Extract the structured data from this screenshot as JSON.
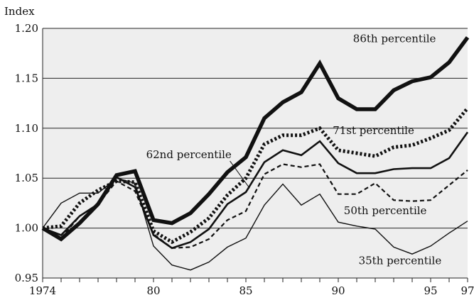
{
  "chart_data": {
    "type": "line",
    "title": "",
    "ylabel": "Index",
    "xlabel": "",
    "xlim": [
      1974,
      1997
    ],
    "ylim": [
      0.95,
      1.2
    ],
    "grid": "horizontal",
    "plot_background": "#eeeeee",
    "xticks": [
      1974,
      1980,
      1985,
      1990,
      1995,
      1997
    ],
    "xtick_labels": [
      "1974",
      "80",
      "85",
      "90",
      "95",
      "97"
    ],
    "yticks": [
      0.95,
      1.0,
      1.05,
      1.1,
      1.15,
      1.2
    ],
    "ytick_labels": [
      "0.95",
      "1.00",
      "1.05",
      "1.10",
      "1.15",
      "1.20"
    ],
    "x": [
      1974,
      1975,
      1976,
      1977,
      1978,
      1979,
      1980,
      1981,
      1982,
      1983,
      1984,
      1985,
      1986,
      1987,
      1988,
      1989,
      1990,
      1991,
      1992,
      1993,
      1994,
      1995,
      1996,
      1997
    ],
    "series": [
      {
        "name": "86th percentile",
        "style": "thick-solid",
        "values": [
          1.0,
          0.989,
          1.005,
          1.024,
          1.053,
          1.057,
          1.008,
          1.005,
          1.015,
          1.034,
          1.056,
          1.071,
          1.11,
          1.126,
          1.136,
          1.165,
          1.13,
          1.119,
          1.119,
          1.138,
          1.147,
          1.151,
          1.166,
          1.191
        ],
        "label_pos": [
          1990.8,
          1.186
        ]
      },
      {
        "name": "71st percentile",
        "style": "thick-dotted",
        "values": [
          1.0,
          1.002,
          1.025,
          1.038,
          1.047,
          1.046,
          0.997,
          0.986,
          0.996,
          1.01,
          1.033,
          1.05,
          1.084,
          1.093,
          1.093,
          1.1,
          1.078,
          1.075,
          1.072,
          1.081,
          1.083,
          1.09,
          1.098,
          1.12
        ],
        "label_pos": [
          1989.7,
          1.094
        ]
      },
      {
        "name": "62nd percentile",
        "style": "medium-solid",
        "values": [
          1.0,
          0.993,
          1.012,
          1.024,
          1.051,
          1.041,
          0.993,
          0.98,
          0.986,
          0.999,
          1.024,
          1.036,
          1.066,
          1.078,
          1.073,
          1.087,
          1.065,
          1.055,
          1.055,
          1.059,
          1.06,
          1.06,
          1.07,
          1.096
        ],
        "label_pos": [
          1979.6,
          1.07
        ]
      },
      {
        "name": "50th percentile",
        "style": "medium-dashed",
        "values": [
          1.0,
          0.99,
          1.012,
          1.024,
          1.047,
          1.037,
          0.994,
          0.98,
          0.981,
          0.989,
          1.008,
          1.017,
          1.054,
          1.064,
          1.061,
          1.064,
          1.034,
          1.034,
          1.045,
          1.028,
          1.027,
          1.028,
          1.043,
          1.058
        ],
        "label_pos": [
          1990.3,
          1.014
        ]
      },
      {
        "name": "35th percentile",
        "style": "thin-solid",
        "values": [
          1.0,
          1.025,
          1.035,
          1.035,
          1.05,
          1.045,
          0.982,
          0.963,
          0.958,
          0.966,
          0.981,
          0.99,
          1.023,
          1.044,
          1.023,
          1.034,
          1.006,
          1.002,
          0.999,
          0.981,
          0.974,
          0.982,
          0.995,
          1.007
        ],
        "label_pos": [
          1991.1,
          0.964
        ]
      }
    ]
  }
}
